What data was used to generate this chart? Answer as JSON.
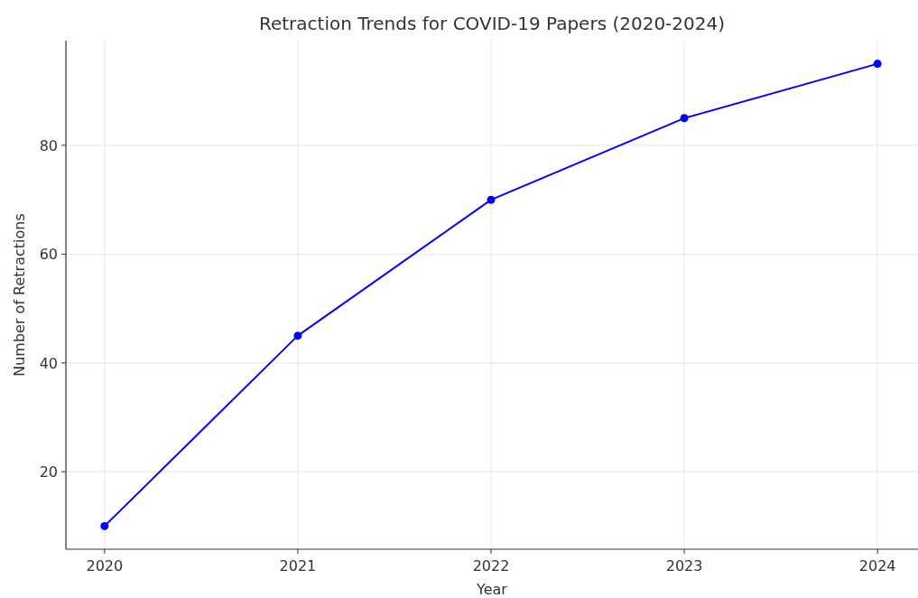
{
  "chart_data": {
    "type": "line",
    "title": "Retraction Trends for COVID-19 Papers (2020-2024)",
    "xlabel": "Year",
    "ylabel": "Number of Retractions",
    "x": [
      2020,
      2021,
      2022,
      2023,
      2024
    ],
    "series": [
      {
        "color": "#0000ff",
        "values": [
          10,
          45,
          70,
          85,
          95
        ]
      }
    ],
    "xlim": [
      2019.8,
      2024.2
    ],
    "xticks": [
      2020,
      2021,
      2022,
      2023,
      2024
    ],
    "ylim": [
      5.75,
      99.25
    ],
    "yticks": [
      20,
      40,
      60,
      80
    ],
    "grid": true,
    "marker": "circle",
    "line_style": "solid"
  }
}
